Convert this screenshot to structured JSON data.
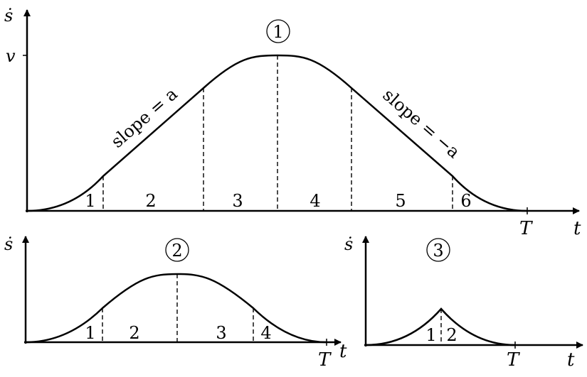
{
  "diagram_1": {
    "badge": "①",
    "y_axis_label": "ṡ",
    "x_axis_label": "t",
    "v_label": "v",
    "end_label": "T",
    "slope_up_label": "slope = a",
    "slope_down_label": "slope = −a",
    "segments": [
      "1",
      "2",
      "3",
      "4",
      "5",
      "6"
    ]
  },
  "diagram_2": {
    "badge": "②",
    "y_axis_label": "ṡ",
    "x_axis_label": "t",
    "end_label": "T",
    "segments": [
      "1",
      "2",
      "3",
      "4"
    ]
  },
  "diagram_3": {
    "badge": "③",
    "y_axis_label": "ṡ",
    "x_axis_label": "t",
    "end_label": "T",
    "segments": [
      "1",
      "2"
    ]
  }
}
